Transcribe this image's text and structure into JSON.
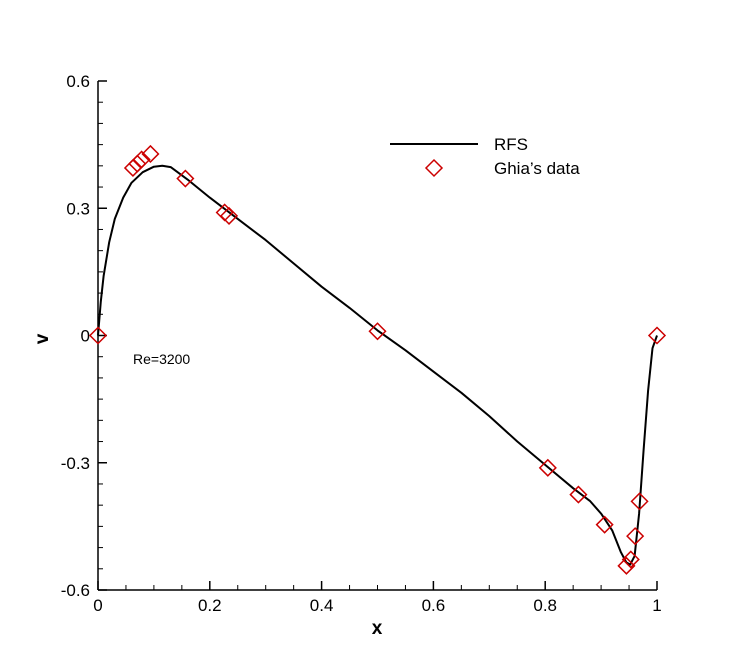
{
  "chart_data": {
    "type": "line",
    "title": "",
    "xlabel": "x",
    "ylabel": "v",
    "xlim": [
      0,
      1
    ],
    "ylim": [
      -0.6,
      0.6
    ],
    "x_ticks": [
      0,
      0.2,
      0.4,
      0.6,
      0.8,
      1
    ],
    "x_tick_labels": [
      "0",
      "0.2",
      "0.4",
      "0.6",
      "0.8",
      "1"
    ],
    "y_ticks": [
      -0.6,
      -0.3,
      0,
      0.3,
      0.6
    ],
    "y_tick_labels": [
      "-0.6",
      "-0.3",
      "0",
      "0.3",
      "0.6"
    ],
    "grid": false,
    "legend_position": "top-right",
    "annotation": "Re=3200",
    "series": [
      {
        "name": "RFS",
        "style": "line",
        "color": "#000000",
        "points": [
          [
            0,
            0
          ],
          [
            0.005,
            0.08
          ],
          [
            0.01,
            0.14
          ],
          [
            0.02,
            0.22
          ],
          [
            0.03,
            0.275
          ],
          [
            0.045,
            0.325
          ],
          [
            0.06,
            0.36
          ],
          [
            0.08,
            0.385
          ],
          [
            0.1,
            0.398
          ],
          [
            0.115,
            0.4
          ],
          [
            0.13,
            0.397
          ],
          [
            0.16,
            0.368
          ],
          [
            0.2,
            0.325
          ],
          [
            0.25,
            0.275
          ],
          [
            0.3,
            0.225
          ],
          [
            0.35,
            0.17
          ],
          [
            0.4,
            0.115
          ],
          [
            0.45,
            0.065
          ],
          [
            0.5,
            0.012
          ],
          [
            0.55,
            -0.035
          ],
          [
            0.6,
            -0.085
          ],
          [
            0.65,
            -0.135
          ],
          [
            0.7,
            -0.19
          ],
          [
            0.75,
            -0.25
          ],
          [
            0.8,
            -0.305
          ],
          [
            0.85,
            -0.36
          ],
          [
            0.88,
            -0.39
          ],
          [
            0.9,
            -0.42
          ],
          [
            0.92,
            -0.46
          ],
          [
            0.935,
            -0.51
          ],
          [
            0.945,
            -0.535
          ],
          [
            0.952,
            -0.54
          ],
          [
            0.96,
            -0.52
          ],
          [
            0.968,
            -0.42
          ],
          [
            0.976,
            -0.27
          ],
          [
            0.984,
            -0.13
          ],
          [
            0.992,
            -0.03
          ],
          [
            1,
            0
          ]
        ]
      },
      {
        "name": "Ghia’s data",
        "style": "marker",
        "marker": "diamond",
        "color": "#cc0000",
        "points": [
          [
            0,
            0
          ],
          [
            0.0625,
            0.395
          ],
          [
            0.0703,
            0.405
          ],
          [
            0.0781,
            0.415
          ],
          [
            0.0938,
            0.428
          ],
          [
            0.1563,
            0.37
          ],
          [
            0.2266,
            0.29
          ],
          [
            0.2344,
            0.282
          ],
          [
            0.5,
            0.01
          ],
          [
            0.8047,
            -0.312
          ],
          [
            0.8594,
            -0.375
          ],
          [
            0.9063,
            -0.446
          ],
          [
            0.9453,
            -0.543
          ],
          [
            0.9531,
            -0.528
          ],
          [
            0.9609,
            -0.473
          ],
          [
            0.9688,
            -0.391
          ],
          [
            1,
            0
          ]
        ]
      }
    ]
  }
}
